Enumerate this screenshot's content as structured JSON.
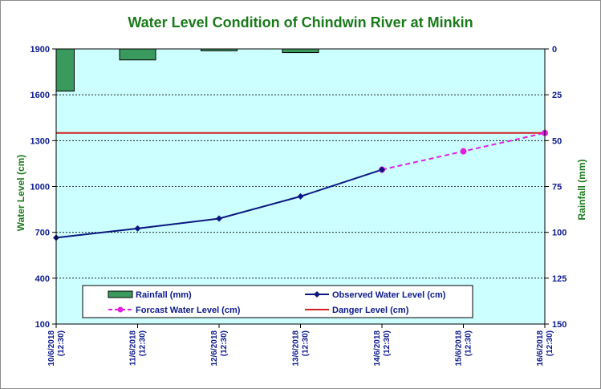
{
  "chart_data": {
    "type": "line",
    "title": "Water Level Condition of Chindwin River at  Minkin",
    "ylabel": "Water Level (cm)",
    "y2label": "Rainfall (mm)",
    "ylim": [
      100,
      1900
    ],
    "yticks": [
      100,
      400,
      700,
      1000,
      1300,
      1600,
      1900
    ],
    "y2lim": [
      0,
      150
    ],
    "y2ticks": [
      0,
      25,
      50,
      75,
      100,
      125,
      150
    ],
    "categories": [
      {
        "date": "10/6/2018",
        "time": "(12:30)"
      },
      {
        "date": "11/6/2018",
        "time": "(12:30)"
      },
      {
        "date": "12/6/2018",
        "time": "(12:30)"
      },
      {
        "date": "13/6/2018",
        "time": "(12:30)"
      },
      {
        "date": "14/6/2018",
        "time": "(12:30)"
      },
      {
        "date": "15/6/2018",
        "time": "(12:30)"
      },
      {
        "date": "16/6/2018",
        "time": "(12:30)"
      }
    ],
    "series": [
      {
        "name": "Rainfall (mm)",
        "kind": "bar",
        "axis": "right",
        "color": "#3a9a5e",
        "values": [
          23,
          6,
          1,
          2,
          0,
          0,
          0
        ]
      },
      {
        "name": "Observed Water Level (cm)",
        "kind": "line",
        "color": "#0b1680",
        "values": [
          665,
          725,
          790,
          935,
          1110,
          null,
          null
        ]
      },
      {
        "name": "Forcast Water Level (cm)",
        "kind": "dashed-line",
        "color": "#e020e0",
        "values": [
          null,
          null,
          null,
          null,
          1110,
          1230,
          1350
        ]
      },
      {
        "name": "Danger Level (cm)",
        "kind": "hline",
        "color": "#d42020",
        "value": 1350
      }
    ],
    "grid": true,
    "legend": "bottom-left inside plot",
    "plot_background": "#ccffff"
  }
}
